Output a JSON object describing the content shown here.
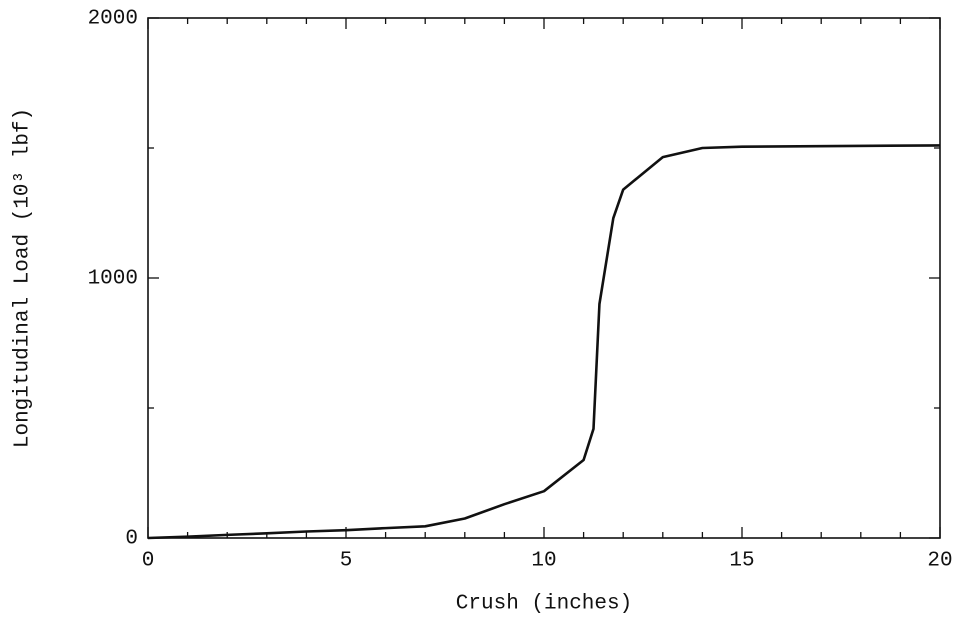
{
  "chart_data": {
    "type": "line",
    "x_label": "Crush (inches)",
    "y_label": "Longitudinal Load (10³ lbf)",
    "x": [
      0,
      1,
      2,
      3,
      4,
      5,
      6,
      7,
      8,
      9,
      10,
      11,
      11.25,
      11.4,
      11.75,
      12,
      13,
      14,
      15,
      20
    ],
    "series": [
      {
        "name": null,
        "color": "#111111",
        "values": [
          0,
          5,
          12,
          18,
          25,
          30,
          38,
          45,
          75,
          130,
          180,
          300,
          420,
          900,
          1230,
          1340,
          1465,
          1500,
          1505,
          1510
        ]
      }
    ],
    "xlim": [
      0,
      20
    ],
    "xticks": [
      0,
      5,
      10,
      15,
      20
    ],
    "xminorticks": [
      1,
      2,
      3,
      4,
      6,
      7,
      8,
      9,
      11,
      12,
      13,
      14,
      16,
      17,
      18,
      19
    ],
    "ylim": [
      0,
      2000
    ],
    "yticks": [
      0,
      1000,
      2000
    ],
    "yminorticks": [
      500,
      1500
    ],
    "grid": false
  }
}
